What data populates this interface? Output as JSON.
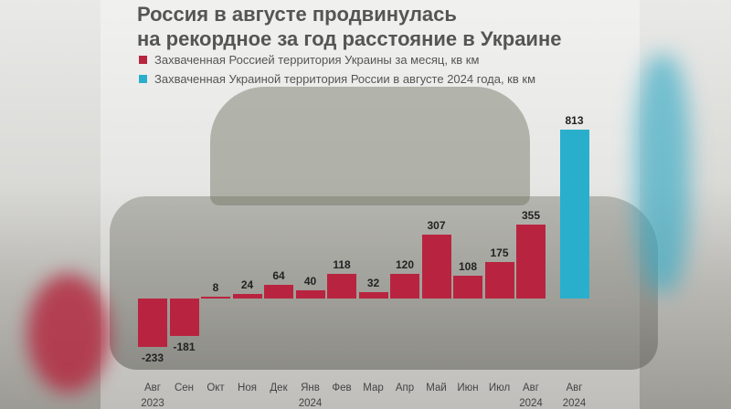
{
  "chart_data": {
    "type": "bar",
    "title": "Россия в августе продвинулась\nна рекордное за год расстояние в Украине",
    "categories": [
      "Авг\n2023",
      "Сен",
      "Окт",
      "Ноя",
      "Дек",
      "Янв\n2024",
      "Фев",
      "Мар",
      "Апр",
      "Май",
      "Июн",
      "Июл",
      "Авг\n2024",
      "Авг\n2024"
    ],
    "series": [
      {
        "name": "Захваченная Россией территория Украины за месяц, кв км",
        "color": "#b8243f",
        "values": [
          -233,
          -181,
          8,
          24,
          64,
          40,
          118,
          32,
          120,
          307,
          108,
          175,
          355,
          null
        ]
      },
      {
        "name": "Захваченная Украиной территория России в августе 2024 года, кв км",
        "color": "#29afcc",
        "values": [
          null,
          null,
          null,
          null,
          null,
          null,
          null,
          null,
          null,
          null,
          null,
          null,
          null,
          813
        ]
      }
    ]
  }
}
